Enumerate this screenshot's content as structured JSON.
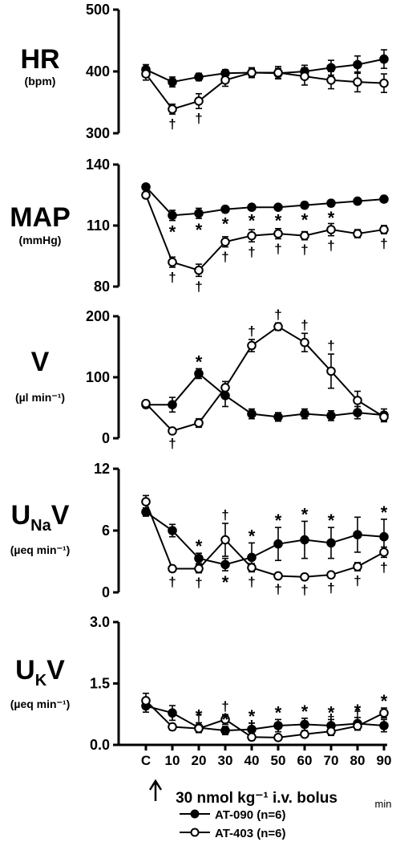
{
  "figure": {
    "x_axis_label": "30 nmol kg⁻¹ i.v. bolus",
    "x_unit": "min",
    "legend": [
      {
        "label": "AT-090 (n=6)",
        "marker": "filled"
      },
      {
        "label": "AT-403 (n=6)",
        "marker": "open"
      }
    ],
    "colors": {
      "line": "#000000",
      "open_fill": "#ffffff",
      "filled_fill": "#000000"
    }
  },
  "chart_data": [
    {
      "type": "line",
      "title": "HR",
      "ylabel": "(bpm)",
      "ylim": [
        300,
        500
      ],
      "yticks": [
        300,
        400,
        500
      ],
      "x": [
        "C",
        "10",
        "20",
        "30",
        "40",
        "50",
        "60",
        "70",
        "80",
        "90"
      ],
      "series": [
        {
          "name": "AT-090 (n=6)",
          "marker": "filled",
          "values": [
            403,
            383,
            391,
            397,
            398,
            397,
            400,
            406,
            411,
            420
          ],
          "errors": [
            8,
            8,
            6,
            6,
            7,
            8,
            10,
            12,
            14,
            15
          ]
        },
        {
          "name": "AT-403 (n=6)",
          "marker": "open",
          "values": [
            396,
            339,
            352,
            386,
            398,
            398,
            392,
            386,
            383,
            381
          ],
          "errors": [
            10,
            8,
            12,
            10,
            8,
            10,
            14,
            14,
            16,
            15
          ]
        }
      ],
      "annotations": [
        {
          "x": "10",
          "text": "†",
          "series": "AT-403 (n=6)",
          "position": "below"
        },
        {
          "x": "20",
          "text": "†",
          "series": "AT-403 (n=6)",
          "position": "below"
        }
      ]
    },
    {
      "type": "line",
      "title": "MAP",
      "ylabel": "(mmHg)",
      "ylim": [
        80,
        140
      ],
      "yticks": [
        80,
        110,
        140
      ],
      "x": [
        "C",
        "10",
        "20",
        "30",
        "40",
        "50",
        "60",
        "70",
        "80",
        "90"
      ],
      "series": [
        {
          "name": "AT-090 (n=6)",
          "marker": "filled",
          "values": [
            129,
            115,
            116,
            118,
            119,
            119,
            120,
            121,
            122,
            123
          ],
          "errors": [
            1,
            2.5,
            2.5,
            1.5,
            1,
            1,
            1.5,
            1.5,
            1,
            1.5
          ]
        },
        {
          "name": "AT-403 (n=6)",
          "marker": "open",
          "values": [
            125,
            92,
            88,
            102,
            105,
            106,
            105,
            108,
            106,
            108
          ],
          "errors": [
            1.5,
            2.5,
            3,
            2.5,
            3,
            2.5,
            2,
            3,
            2,
            2
          ]
        }
      ],
      "annotations": [
        {
          "x": "10",
          "text": "*",
          "series": "AT-090 (n=6)",
          "position": "below"
        },
        {
          "x": "20",
          "text": "*",
          "series": "AT-090 (n=6)",
          "position": "below"
        },
        {
          "x": "30",
          "text": "*",
          "series": "AT-090 (n=6)",
          "position": "below"
        },
        {
          "x": "40",
          "text": "*",
          "series": "AT-090 (n=6)",
          "position": "below"
        },
        {
          "x": "50",
          "text": "*",
          "series": "AT-090 (n=6)",
          "position": "below"
        },
        {
          "x": "60",
          "text": "*",
          "series": "AT-090 (n=6)",
          "position": "below"
        },
        {
          "x": "70",
          "text": "*",
          "series": "AT-090 (n=6)",
          "position": "below"
        },
        {
          "x": "10",
          "text": "†",
          "series": "AT-403 (n=6)",
          "position": "below"
        },
        {
          "x": "20",
          "text": "†",
          "series": "AT-403 (n=6)",
          "position": "below"
        },
        {
          "x": "30",
          "text": "†",
          "series": "AT-403 (n=6)",
          "position": "below"
        },
        {
          "x": "40",
          "text": "†",
          "series": "AT-403 (n=6)",
          "position": "below"
        },
        {
          "x": "50",
          "text": "†",
          "series": "AT-403 (n=6)",
          "position": "below"
        },
        {
          "x": "60",
          "text": "†",
          "series": "AT-403 (n=6)",
          "position": "below"
        },
        {
          "x": "70",
          "text": "†",
          "series": "AT-403 (n=6)",
          "position": "below"
        },
        {
          "x": "90",
          "text": "†",
          "series": "AT-403 (n=6)",
          "position": "below"
        }
      ]
    },
    {
      "type": "line",
      "title": "V",
      "ylabel": "(µl min⁻¹)",
      "ylim": [
        0,
        200
      ],
      "yticks": [
        0,
        100,
        200
      ],
      "x": [
        "C",
        "10",
        "20",
        "30",
        "40",
        "50",
        "60",
        "70",
        "80",
        "90"
      ],
      "series": [
        {
          "name": "AT-090 (n=6)",
          "marker": "filled",
          "values": [
            55,
            55,
            106,
            70,
            40,
            35,
            40,
            37,
            42,
            38
          ],
          "errors": [
            5,
            12,
            8,
            18,
            8,
            7,
            8,
            8,
            10,
            10
          ]
        },
        {
          "name": "AT-403 (n=6)",
          "marker": "open",
          "values": [
            57,
            12,
            25,
            83,
            152,
            183,
            157,
            110,
            62,
            35
          ],
          "errors": [
            3,
            4,
            7,
            10,
            10,
            6,
            15,
            28,
            15,
            8
          ]
        }
      ],
      "annotations": [
        {
          "x": "20",
          "text": "*",
          "series": "AT-090 (n=6)",
          "position": "above"
        },
        {
          "x": "10",
          "text": "†",
          "series": "AT-403 (n=6)",
          "position": "below"
        },
        {
          "x": "40",
          "text": "†",
          "series": "AT-403 (n=6)",
          "position": "above"
        },
        {
          "x": "50",
          "text": "†",
          "series": "AT-403 (n=6)",
          "position": "above"
        },
        {
          "x": "60",
          "text": "†",
          "series": "AT-403 (n=6)",
          "position": "above"
        },
        {
          "x": "70",
          "text": "†",
          "series": "AT-403 (n=6)",
          "position": "above"
        }
      ]
    },
    {
      "type": "line",
      "title": "UNaV",
      "title_main": "U",
      "title_sub": "Na",
      "title_tail": "V",
      "ylabel": "(µeq min⁻¹)",
      "ylim": [
        0,
        12
      ],
      "yticks": [
        0,
        6,
        12
      ],
      "x": [
        "C",
        "10",
        "20",
        "30",
        "40",
        "50",
        "60",
        "70",
        "80",
        "90"
      ],
      "series": [
        {
          "name": "AT-090 (n=6)",
          "marker": "filled",
          "values": [
            7.8,
            6.0,
            3.3,
            2.7,
            3.4,
            4.7,
            5.1,
            4.8,
            5.6,
            5.4
          ],
          "errors": [
            0.4,
            0.6,
            0.5,
            0.6,
            1.4,
            1.6,
            1.8,
            1.5,
            1.7,
            1.7
          ]
        },
        {
          "name": "AT-403 (n=6)",
          "marker": "open",
          "values": [
            8.8,
            2.3,
            2.3,
            5.1,
            2.4,
            1.6,
            1.5,
            1.7,
            2.5,
            3.9
          ],
          "errors": [
            0.6,
            0.3,
            0.4,
            1.6,
            0.4,
            0.3,
            0.3,
            0.3,
            0.4,
            0.5
          ]
        }
      ],
      "annotations": [
        {
          "x": "20",
          "text": "*",
          "series": "AT-090 (n=6)",
          "position": "above"
        },
        {
          "x": "30",
          "text": "*",
          "series": "AT-090 (n=6)",
          "position": "below"
        },
        {
          "x": "40",
          "text": "*",
          "series": "AT-090 (n=6)",
          "position": "above"
        },
        {
          "x": "50",
          "text": "*",
          "series": "AT-090 (n=6)",
          "position": "above"
        },
        {
          "x": "60",
          "text": "*",
          "series": "AT-090 (n=6)",
          "position": "above"
        },
        {
          "x": "70",
          "text": "*",
          "series": "AT-090 (n=6)",
          "position": "above"
        },
        {
          "x": "90",
          "text": "*",
          "series": "AT-090 (n=6)",
          "position": "above"
        },
        {
          "x": "10",
          "text": "†",
          "series": "AT-403 (n=6)",
          "position": "below"
        },
        {
          "x": "20",
          "text": "†",
          "series": "AT-403 (n=6)",
          "position": "below"
        },
        {
          "x": "30",
          "text": "†",
          "series": "AT-403 (n=6)",
          "position": "above"
        },
        {
          "x": "40",
          "text": "†",
          "series": "AT-403 (n=6)",
          "position": "below"
        },
        {
          "x": "50",
          "text": "†",
          "series": "AT-403 (n=6)",
          "position": "below"
        },
        {
          "x": "60",
          "text": "†",
          "series": "AT-403 (n=6)",
          "position": "below"
        },
        {
          "x": "70",
          "text": "†",
          "series": "AT-403 (n=6)",
          "position": "below"
        },
        {
          "x": "80",
          "text": "†",
          "series": "AT-403 (n=6)",
          "position": "below"
        },
        {
          "x": "90",
          "text": "†",
          "series": "AT-403 (n=6)",
          "position": "below"
        }
      ]
    },
    {
      "type": "line",
      "title": "UKV",
      "title_main": "U",
      "title_sub": "K",
      "title_tail": "V",
      "ylabel": "(µeq min⁻¹)",
      "ylim": [
        0,
        3.0
      ],
      "yticks": [
        0.0,
        1.5,
        3.0
      ],
      "ytick_labels": [
        "0.0",
        "1.5",
        "3.0"
      ],
      "x": [
        "C",
        "10",
        "20",
        "30",
        "40",
        "50",
        "60",
        "70",
        "80",
        "90"
      ],
      "series": [
        {
          "name": "AT-090 (n=6)",
          "marker": "filled",
          "values": [
            0.95,
            0.78,
            0.42,
            0.35,
            0.38,
            0.47,
            0.5,
            0.47,
            0.52,
            0.47
          ],
          "errors": [
            0.15,
            0.18,
            0.12,
            0.1,
            0.15,
            0.15,
            0.15,
            0.15,
            0.15,
            0.15
          ]
        },
        {
          "name": "AT-403 (n=6)",
          "marker": "open",
          "values": [
            1.08,
            0.44,
            0.4,
            0.62,
            0.19,
            0.18,
            0.26,
            0.33,
            0.46,
            0.78
          ],
          "errors": [
            0.18,
            0.08,
            0.08,
            0.12,
            0.08,
            0.06,
            0.06,
            0.1,
            0.1,
            0.12
          ]
        }
      ],
      "annotations": [
        {
          "x": "10",
          "text": "†",
          "series": "AT-403 (n=6)",
          "position": "above"
        },
        {
          "x": "20",
          "text": "†",
          "series": "AT-403 (n=6)",
          "position": "above"
        },
        {
          "x": "30",
          "text": "†",
          "series": "AT-403 (n=6)",
          "position": "above"
        },
        {
          "x": "40",
          "text": "†",
          "series": "AT-403 (n=6)",
          "position": "above"
        },
        {
          "x": "50",
          "text": "†",
          "series": "AT-403 (n=6)",
          "position": "above"
        },
        {
          "x": "60",
          "text": "†",
          "series": "AT-403 (n=6)",
          "position": "above"
        },
        {
          "x": "70",
          "text": "†",
          "series": "AT-403 (n=6)",
          "position": "above"
        },
        {
          "x": "80",
          "text": "†",
          "series": "AT-403 (n=6)",
          "position": "above"
        },
        {
          "x": "20",
          "text": "*",
          "series": "AT-090 (n=6)",
          "position": "above"
        },
        {
          "x": "30",
          "text": "*",
          "series": "AT-090 (n=6)",
          "position": "above"
        },
        {
          "x": "40",
          "text": "*",
          "series": "AT-090 (n=6)",
          "position": "above"
        },
        {
          "x": "50",
          "text": "*",
          "series": "AT-090 (n=6)",
          "position": "above"
        },
        {
          "x": "60",
          "text": "*",
          "series": "AT-090 (n=6)",
          "position": "above"
        },
        {
          "x": "70",
          "text": "*",
          "series": "AT-090 (n=6)",
          "position": "above"
        },
        {
          "x": "80",
          "text": "*",
          "series": "AT-090 (n=6)",
          "position": "above"
        },
        {
          "x": "90",
          "text": "*",
          "series": "AT-403 (n=6)",
          "position": "above"
        }
      ]
    }
  ]
}
